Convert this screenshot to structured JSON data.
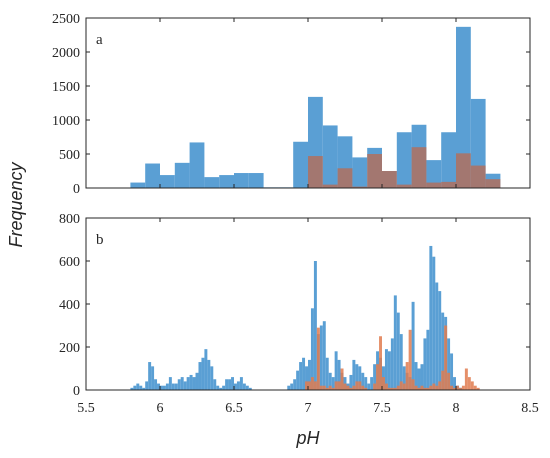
{
  "chart_data": [
    {
      "type": "bar",
      "panel_label": "a",
      "ylim": [
        0,
        2500
      ],
      "xlim": [
        5.5,
        8.5
      ],
      "yticks": [
        "0",
        "500",
        "1000",
        "1500",
        "2000",
        "2500"
      ],
      "xticks": [],
      "grid": false,
      "series": [
        {
          "color": "#5a9fd4",
          "bins": [
            {
              "x0": 5.8,
              "x1": 5.9,
              "y": 80
            },
            {
              "x0": 5.9,
              "x1": 6.0,
              "y": 360
            },
            {
              "x0": 6.0,
              "x1": 6.1,
              "y": 190
            },
            {
              "x0": 6.1,
              "x1": 6.2,
              "y": 370
            },
            {
              "x0": 6.2,
              "x1": 6.3,
              "y": 670
            },
            {
              "x0": 6.3,
              "x1": 6.4,
              "y": 160
            },
            {
              "x0": 6.4,
              "x1": 6.5,
              "y": 190
            },
            {
              "x0": 6.5,
              "x1": 6.6,
              "y": 220
            },
            {
              "x0": 6.6,
              "x1": 6.7,
              "y": 220
            },
            {
              "x0": 6.7,
              "x1": 6.8,
              "y": 10
            },
            {
              "x0": 6.8,
              "x1": 6.9,
              "y": 10
            },
            {
              "x0": 6.9,
              "x1": 7.0,
              "y": 680
            },
            {
              "x0": 7.0,
              "x1": 7.1,
              "y": 1340
            },
            {
              "x0": 7.1,
              "x1": 7.2,
              "y": 920
            },
            {
              "x0": 7.2,
              "x1": 7.3,
              "y": 760
            },
            {
              "x0": 7.3,
              "x1": 7.4,
              "y": 450
            },
            {
              "x0": 7.4,
              "x1": 7.5,
              "y": 590
            },
            {
              "x0": 7.5,
              "x1": 7.6,
              "y": 250
            },
            {
              "x0": 7.6,
              "x1": 7.7,
              "y": 820
            },
            {
              "x0": 7.7,
              "x1": 7.8,
              "y": 930
            },
            {
              "x0": 7.8,
              "x1": 7.9,
              "y": 410
            },
            {
              "x0": 7.9,
              "x1": 8.0,
              "y": 820
            },
            {
              "x0": 8.0,
              "x1": 8.1,
              "y": 2370
            },
            {
              "x0": 8.1,
              "x1": 8.2,
              "y": 1310
            },
            {
              "x0": 8.2,
              "x1": 8.3,
              "y": 210
            }
          ]
        },
        {
          "color": "#b0705e",
          "bins": [
            {
              "x0": 7.0,
              "x1": 7.1,
              "y": 470
            },
            {
              "x0": 7.1,
              "x1": 7.2,
              "y": 50
            },
            {
              "x0": 7.2,
              "x1": 7.3,
              "y": 290
            },
            {
              "x0": 7.3,
              "x1": 7.4,
              "y": 20
            },
            {
              "x0": 7.4,
              "x1": 7.5,
              "y": 500
            },
            {
              "x0": 7.5,
              "x1": 7.6,
              "y": 250
            },
            {
              "x0": 7.6,
              "x1": 7.7,
              "y": 50
            },
            {
              "x0": 7.7,
              "x1": 7.8,
              "y": 600
            },
            {
              "x0": 7.8,
              "x1": 7.9,
              "y": 80
            },
            {
              "x0": 7.9,
              "x1": 8.0,
              "y": 90
            },
            {
              "x0": 8.0,
              "x1": 8.1,
              "y": 510
            },
            {
              "x0": 8.1,
              "x1": 8.2,
              "y": 330
            },
            {
              "x0": 8.2,
              "x1": 8.3,
              "y": 130
            }
          ]
        }
      ]
    },
    {
      "type": "bar",
      "panel_label": "b",
      "ylim": [
        0,
        800
      ],
      "xlim": [
        5.5,
        8.5
      ],
      "yticks": [
        "0",
        "200",
        "400",
        "600",
        "800"
      ],
      "xticks": [
        "5.5",
        "6",
        "6.5",
        "7",
        "7.5",
        "8",
        "8.5"
      ],
      "xlabel": "pH",
      "ylabel": "Frequency",
      "grid": false,
      "bin_width": 0.02,
      "series": [
        {
          "color": "#5a9fd4",
          "bins_start": 5.8,
          "values": [
            10,
            20,
            30,
            20,
            10,
            40,
            130,
            110,
            50,
            30,
            20,
            20,
            30,
            60,
            30,
            30,
            50,
            60,
            40,
            60,
            70,
            60,
            80,
            130,
            150,
            190,
            140,
            110,
            50,
            20,
            10,
            20,
            50,
            50,
            60,
            30,
            40,
            60,
            30,
            20,
            10,
            0,
            0,
            0,
            0,
            0,
            0,
            0,
            0,
            0,
            0,
            0,
            0,
            20,
            30,
            50,
            90,
            130,
            150,
            110,
            140,
            380,
            600,
            260,
            300,
            320,
            150,
            80,
            60,
            180,
            140,
            80,
            60,
            30,
            70,
            140,
            120,
            110,
            80,
            60,
            30,
            60,
            120,
            180,
            150,
            110,
            190,
            180,
            240,
            440,
            360,
            260,
            110,
            80,
            60,
            410,
            130,
            100,
            120,
            240,
            280,
            670,
            620,
            500,
            460,
            360,
            340,
            240,
            170,
            60,
            20,
            10
          ]
        },
        {
          "color": "#e07b4f",
          "bins_start": 6.98,
          "values": [
            40,
            40,
            60,
            40,
            290,
            20,
            20,
            10,
            20,
            10,
            40,
            40,
            100,
            30,
            20,
            10,
            20,
            40,
            40,
            20,
            10,
            0,
            0,
            30,
            120,
            250,
            60,
            30,
            10,
            10,
            10,
            20,
            40,
            30,
            130,
            280,
            50,
            20,
            10,
            20,
            10,
            10,
            20,
            30,
            20,
            40,
            90,
            300,
            80,
            20,
            10,
            20,
            10,
            20,
            100,
            60,
            40,
            20,
            10
          ]
        }
      ]
    }
  ]
}
